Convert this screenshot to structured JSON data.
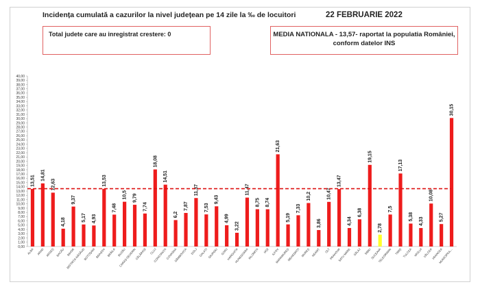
{
  "title": "Incidența cumulată a cazurilor la nivel județean pe 14 zile la ‰ de locuitori",
  "date": "22 FEBRUARIE 2022",
  "box_left": "Total judete care au inregistrat crestere: 0",
  "box_right": {
    "line1": "MEDIA NATIONALA - 13,57-  raportat la populatia României,",
    "line2": "conform datelor INS"
  },
  "colors": {
    "bar": "#ee1c1c",
    "highlight": "#ffff2a",
    "average_line": "#dd1111"
  },
  "chart_data": {
    "type": "bar",
    "categories": [
      "ALBA",
      "ARAD",
      "ARGEȘ",
      "BACĂU",
      "BIHOR",
      "BISTRIȚA-NĂSĂUD",
      "BOTOȘANI",
      "BRAȘOV",
      "BRĂILA",
      "BUZĂU",
      "CARAȘ-SEVERIN",
      "CĂLĂRAȘI",
      "CLUJ",
      "CONSTANȚA",
      "COVASNA",
      "DÂMBOVIȚA",
      "DOLJ",
      "GALAȚI",
      "GIURGIU",
      "GORJ",
      "HARGHITA",
      "HUNEDOARA",
      "IALOMIȚA",
      "IAȘI",
      "ILFOV",
      "MARAMUREȘ",
      "MEHEDINȚI",
      "MUREȘ",
      "NEAMȚ",
      "OLT",
      "PRAHOVA",
      "SATU MARE",
      "SĂLAJ",
      "SIBIU",
      "SUCEAVA",
      "TELEORMAN",
      "TIMIȘ",
      "TULCEA",
      "VASLUI",
      "VÂLCEA",
      "VRANCEA",
      "MUNICIPIUL..."
    ],
    "values": [
      13.51,
      14.81,
      12.63,
      4.18,
      9.37,
      5.17,
      4.93,
      13.53,
      7.48,
      10.5,
      9.79,
      7.74,
      18.08,
      14.51,
      6.2,
      7.87,
      11.37,
      7.53,
      9.43,
      4.99,
      3.22,
      11.47,
      8.75,
      8.74,
      21.63,
      5.19,
      7.33,
      10.2,
      3.86,
      10.47,
      13.47,
      4.34,
      6.38,
      19.15,
      2.78,
      7.5,
      17.13,
      5.38,
      4.33,
      10.08,
      5.27,
      30.15
    ],
    "value_labels": [
      "13,51",
      "14,81",
      "12,63",
      "4,18",
      "9,37",
      "5,17",
      "4,93",
      "13,53",
      "7,48",
      "10,5",
      "9,79",
      "7,74",
      "18,08",
      "14,51",
      "6,2",
      "7,87",
      "11,37",
      "7,53",
      "9,43",
      "4,99",
      "3,22",
      "11,47",
      "8,75",
      "8,74",
      "21,63",
      "5,19",
      "7,33",
      "10,2",
      "3,86",
      "10,47",
      "13,47",
      "4,34",
      "6,38",
      "19,15",
      "2,78",
      "7,5",
      "17,13",
      "5,38",
      "4,33",
      "10,08",
      "5,27",
      "30,15"
    ],
    "highlight_index": 34,
    "average": 13.57,
    "ylim": [
      0,
      40
    ],
    "ytick_step": 1,
    "yticks_format": "comma-2-decimals",
    "grid": false,
    "legend": "none"
  }
}
